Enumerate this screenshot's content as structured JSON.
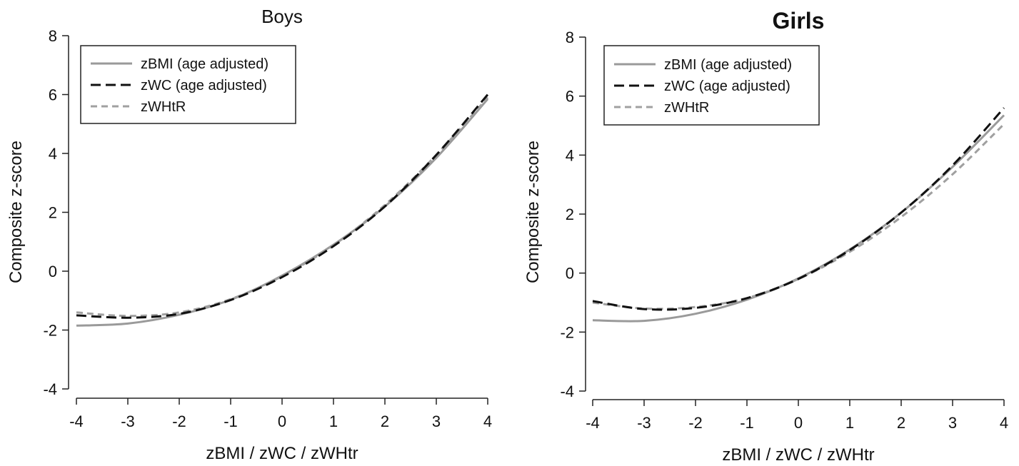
{
  "chart_data": [
    {
      "type": "line",
      "title": "Boys",
      "title_bold": false,
      "xlabel": "zBMI / zWC / zWHtr",
      "ylabel": "Composite z-score",
      "xlim": [
        -4,
        4
      ],
      "ylim": [
        -4,
        8
      ],
      "xticks": [
        -4,
        -3,
        -2,
        -1,
        0,
        1,
        2,
        3,
        4
      ],
      "yticks": [
        -4,
        -2,
        0,
        2,
        4,
        6,
        8
      ],
      "grid": false,
      "legend_position": "top-left",
      "x": [
        -4,
        -3,
        -2,
        -1,
        0,
        1,
        2,
        3,
        4
      ],
      "series": [
        {
          "name": "zBMI (age adjusted)",
          "style": "solid",
          "color": "#9a9a9a",
          "values": [
            -1.85,
            -1.78,
            -1.48,
            -0.97,
            -0.15,
            0.9,
            2.2,
            3.85,
            5.85
          ]
        },
        {
          "name": "zWC (age adjusted)",
          "style": "dashed",
          "color": "#111111",
          "values": [
            -1.5,
            -1.58,
            -1.45,
            -0.98,
            -0.2,
            0.85,
            2.2,
            3.95,
            6.0
          ]
        },
        {
          "name": "zWHtR",
          "style": "dashed",
          "color": "#a0a0a0",
          "values": [
            -1.4,
            -1.52,
            -1.4,
            -0.95,
            -0.17,
            0.88,
            2.25,
            3.95,
            5.9
          ]
        }
      ]
    },
    {
      "type": "line",
      "title": "Girls",
      "title_bold": true,
      "xlabel": "zBMI / zWC / zWHtr",
      "ylabel": "Composite z-score",
      "xlim": [
        -4,
        4
      ],
      "ylim": [
        -4,
        8
      ],
      "xticks": [
        -4,
        -3,
        -2,
        -1,
        0,
        1,
        2,
        3,
        4
      ],
      "yticks": [
        -4,
        -2,
        0,
        2,
        4,
        6,
        8
      ],
      "grid": false,
      "legend_position": "top-left",
      "x": [
        -4,
        -3,
        -2,
        -1,
        0,
        1,
        2,
        3,
        4
      ],
      "series": [
        {
          "name": "zBMI (age adjusted)",
          "style": "solid",
          "color": "#9a9a9a",
          "values": [
            -1.6,
            -1.62,
            -1.38,
            -0.9,
            -0.18,
            0.8,
            2.05,
            3.6,
            5.35
          ]
        },
        {
          "name": "zWC (age adjusted)",
          "style": "dashed",
          "color": "#111111",
          "values": [
            -0.95,
            -1.22,
            -1.18,
            -0.85,
            -0.2,
            0.78,
            2.05,
            3.65,
            5.6
          ]
        },
        {
          "name": "zWHtR",
          "style": "dashed",
          "color": "#a0a0a0",
          "values": [
            -1.0,
            -1.2,
            -1.15,
            -0.85,
            -0.2,
            0.72,
            1.9,
            3.35,
            5.05
          ]
        }
      ]
    }
  ]
}
